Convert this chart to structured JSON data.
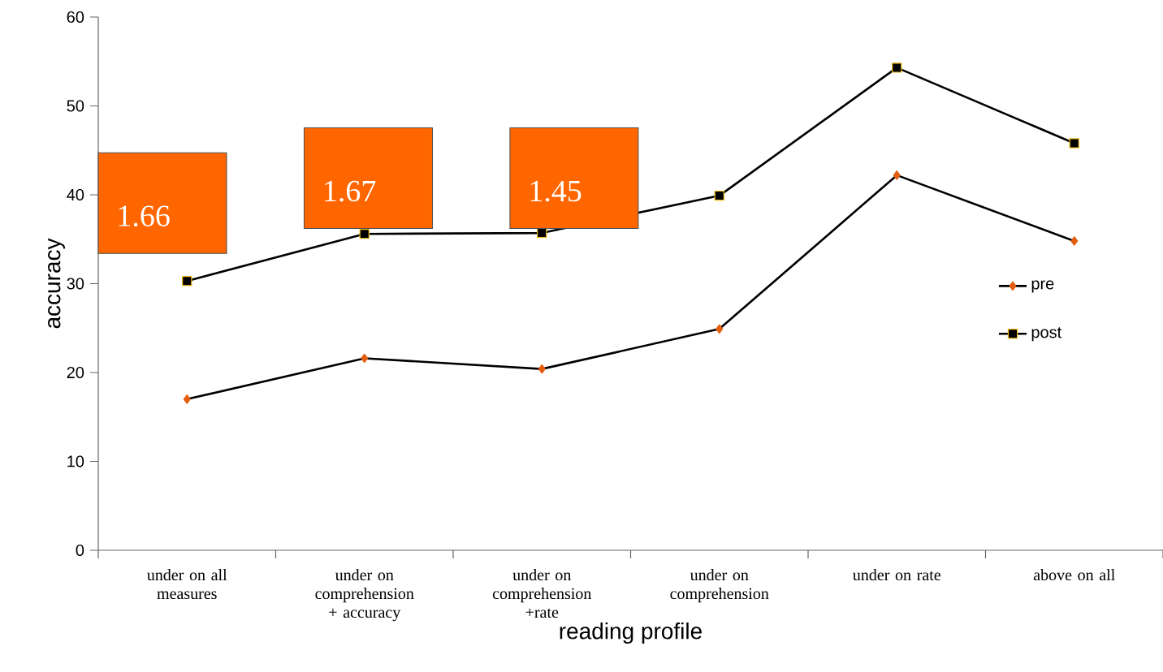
{
  "chart_data": {
    "type": "line",
    "xlabel": "reading profile",
    "ylabel": "accuracy",
    "categories": [
      "under on all measures",
      "under on comprehension + accuracy",
      "under on comprehension +rate",
      "under on comprehension",
      "under on rate",
      "above on all"
    ],
    "series": [
      {
        "name": "pre",
        "color": "#000000",
        "marker": "diamond",
        "values": [
          17.0,
          21.6,
          20.4,
          24.9,
          42.2,
          34.8
        ]
      },
      {
        "name": "post",
        "color": "#000000",
        "marker": "square",
        "values": [
          30.3,
          35.6,
          35.7,
          39.9,
          54.3,
          45.8
        ]
      }
    ],
    "ylim": [
      0,
      60
    ],
    "yticks": [
      0,
      10,
      20,
      30,
      40,
      50,
      60
    ],
    "grid": false,
    "legend": "right",
    "annotations": [
      "1.66",
      "1.67",
      "1.45"
    ]
  }
}
